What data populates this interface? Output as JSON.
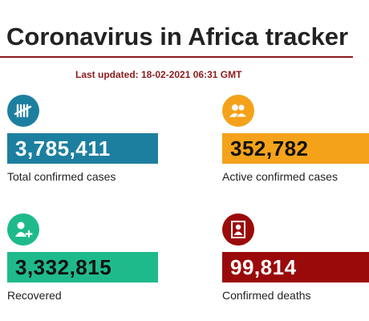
{
  "header": {
    "title": "Coronavirus in Africa tracker",
    "last_updated": "Last updated: 18-02-2021 06:31 GMT"
  },
  "colors": {
    "accent": "#8a1c1c",
    "total": "#1d7fa0",
    "active": "#f5a21b",
    "recovered": "#1fba8b",
    "deaths": "#9b0a0a"
  },
  "stats": {
    "total": {
      "value": "3,785,411",
      "label": "Total confirmed cases",
      "icon": "tally-marks-icon"
    },
    "active": {
      "value": "352,782",
      "label": "Active confirmed cases",
      "icon": "people-icon"
    },
    "recovered": {
      "value": "3,332,815",
      "label": "Recovered",
      "icon": "person-plus-icon"
    },
    "deaths": {
      "value": "99,814",
      "label": "Confirmed deaths",
      "icon": "portrait-frame-icon"
    }
  }
}
